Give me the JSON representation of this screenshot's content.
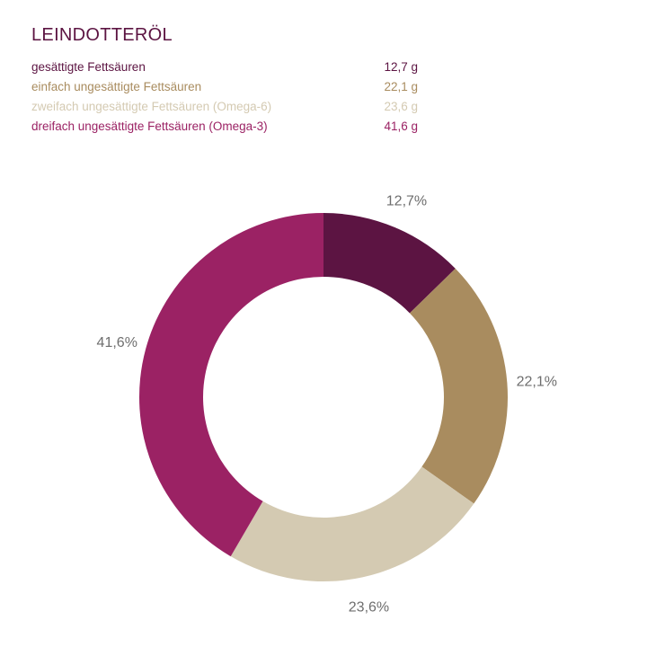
{
  "title": "LEINDOTTERÖL",
  "legend": [
    {
      "label": "gesättigte Fettsäuren",
      "amount": "12,7 g",
      "color": "#5c1442"
    },
    {
      "label": "einfach ungesättigte Fettsäuren",
      "amount": "22,1 g",
      "color": "#a98c5f"
    },
    {
      "label": "zweifach ungesättigte Fettsäuren (Omega-6)",
      "amount": "23,6 g",
      "color": "#d4cab2"
    },
    {
      "label": "dreifach ungesättigte Fettsäuren (Omega-3)",
      "amount": "41,6 g",
      "color": "#9b2264"
    }
  ],
  "chart_data": {
    "type": "pie",
    "donut": true,
    "title": "LEINDOTTERÖL",
    "categories": [
      "gesättigte Fettsäuren",
      "einfach ungesättigte Fettsäuren",
      "zweifach ungesättigte Fettsäuren (Omega-6)",
      "dreifach ungesättigte Fettsäuren (Omega-3)"
    ],
    "values": [
      12.7,
      22.1,
      23.6,
      41.6
    ],
    "labels": [
      "12,7%",
      "22,1%",
      "23,6%",
      "41,6%"
    ],
    "colors": [
      "#5c1442",
      "#a98c5f",
      "#d4cab2",
      "#9b2264"
    ],
    "start": "top, clockwise"
  }
}
